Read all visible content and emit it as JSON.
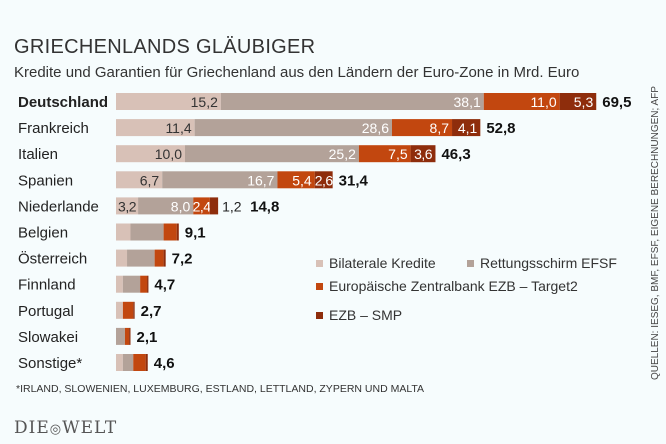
{
  "chart_data": {
    "type": "bar",
    "orientation": "horizontal",
    "stacked": true,
    "title": "GRIECHENLANDS GLÄUBIGER",
    "subtitle": "Kredite und Garantien für Griechenland aus den Ländern der Euro-Zone in Mrd. Euro",
    "categories": [
      "Deutschland",
      "Frankreich",
      "Italien",
      "Spanien",
      "Niederlande",
      "Belgien",
      "Österreich",
      "Finnland",
      "Portugal",
      "Slowakei",
      "Sonstige*"
    ],
    "highlight_category": "Deutschland",
    "series": [
      {
        "name": "Bilaterale Kredite",
        "color": "#d8c1b7",
        "values": [
          15.2,
          11.4,
          10.0,
          6.7,
          3.2,
          2.1,
          1.6,
          1.0,
          1.0,
          0,
          1.0
        ]
      },
      {
        "name": "Rettungsschirm EFSF",
        "color": "#b3a299",
        "values": [
          38.1,
          28.6,
          25.2,
          16.7,
          8.0,
          4.8,
          4.0,
          2.5,
          0,
          1.3,
          1.5
        ]
      },
      {
        "name": "Europäische Zentralbank EZB – Target2",
        "color": "#c2470f",
        "values": [
          11.0,
          8.7,
          7.5,
          5.4,
          2.4,
          1.9,
          1.3,
          1.0,
          1.5,
          0.6,
          1.8
        ]
      },
      {
        "name": "EZB – SMP",
        "color": "#8e2d0c",
        "values": [
          5.3,
          4.1,
          3.6,
          2.6,
          1.2,
          0.3,
          0.3,
          0.2,
          0.2,
          0.2,
          0.3
        ]
      }
    ],
    "segment_labels": [
      [
        "15,2",
        "38,1",
        "11,0",
        "5,3"
      ],
      [
        "11,4",
        "28,6",
        "8,7",
        "4,1"
      ],
      [
        "10,0",
        "25,2",
        "7,5",
        "3,6"
      ],
      [
        "6,7",
        "16,7",
        "5,4",
        "2,6"
      ],
      [
        "3,2",
        "8,0",
        "2,4",
        "1,2"
      ],
      [],
      [],
      [],
      [],
      [],
      []
    ],
    "totals": [
      "69,5",
      "52,8",
      "46,3",
      "31,4",
      "14,8",
      "9,1",
      "7,2",
      "4,7",
      "2,7",
      "2,1",
      "4,6"
    ],
    "legend_position": "right-middle",
    "grid": false
  },
  "footnote": "*IRLAND, SLOWENIEN, LUXEMBURG, ESTLAND, LETTLAND, ZYPERN UND MALTA",
  "source": "QUELLEN: IESEG, BMF, EFSF, EIGENE BERECHNUNGEN; AFP",
  "logo": "DIE WELT"
}
